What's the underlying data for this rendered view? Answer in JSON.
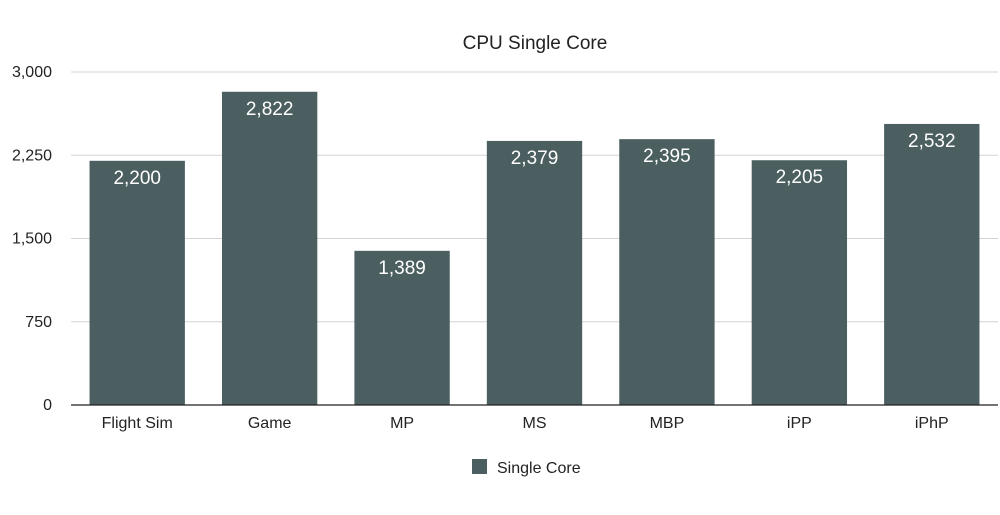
{
  "chart_data": {
    "type": "bar",
    "title": "CPU Single Core",
    "xlabel": "",
    "ylabel": "",
    "categories": [
      "Flight Sim",
      "Game",
      "MP",
      "MS",
      "MBP",
      "iPP",
      "iPhP"
    ],
    "series": [
      {
        "name": "Single Core",
        "values": [
          2200,
          2822,
          1389,
          2379,
          2395,
          2205,
          2532
        ],
        "data_labels": [
          "2,200",
          "2,822",
          "1,389",
          "2,379",
          "2,395",
          "2,205",
          "2,532"
        ],
        "color": "#4b5f60"
      }
    ],
    "ylim": [
      0,
      3000
    ],
    "yticks": [
      0,
      750,
      1500,
      2250,
      3000
    ],
    "ytick_labels": [
      "0",
      "750",
      "1,500",
      "2,250",
      "3,000"
    ],
    "grid": true,
    "legend": "bottom-center",
    "colors": {
      "bar": "#4b5f60",
      "grid": "#d4d4d4",
      "axis": "#222222",
      "label_inside": "#ffffff"
    }
  }
}
